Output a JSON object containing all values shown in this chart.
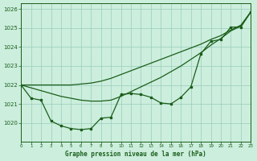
{
  "title": "Graphe pression niveau de la mer (hPa)",
  "background_color": "#cceedd",
  "grid_color": "#99ccbb",
  "line_color": "#1a5e1a",
  "xlim": [
    0,
    23
  ],
  "ylim": [
    1019.0,
    1026.3
  ],
  "yticks": [
    1020,
    1021,
    1022,
    1023,
    1024,
    1025,
    1026
  ],
  "xticks": [
    0,
    1,
    2,
    3,
    4,
    5,
    6,
    7,
    8,
    9,
    10,
    11,
    12,
    13,
    14,
    15,
    16,
    17,
    18,
    19,
    20,
    21,
    22,
    23
  ],
  "x": [
    0,
    1,
    2,
    3,
    4,
    5,
    6,
    7,
    8,
    9,
    10,
    11,
    12,
    13,
    14,
    15,
    16,
    17,
    18,
    19,
    20,
    21,
    22,
    23
  ],
  "y_actual": [
    1022.0,
    1021.3,
    1021.2,
    1020.1,
    1019.85,
    1019.7,
    1019.65,
    1019.7,
    1020.25,
    1020.3,
    1021.5,
    1021.55,
    1021.5,
    1021.35,
    1021.05,
    1021.0,
    1021.35,
    1021.9,
    1023.65,
    1024.3,
    1024.4,
    1025.05,
    1025.05,
    1025.85
  ],
  "y_trend1": [
    1022.0,
    1021.85,
    1021.7,
    1021.55,
    1021.4,
    1021.3,
    1021.2,
    1021.15,
    1021.15,
    1021.2,
    1021.4,
    1021.65,
    1021.9,
    1022.15,
    1022.4,
    1022.7,
    1023.0,
    1023.35,
    1023.7,
    1024.1,
    1024.45,
    1024.85,
    1025.1,
    1025.85
  ],
  "y_trend2": [
    1022.0,
    1022.0,
    1022.0,
    1022.0,
    1022.0,
    1022.0,
    1022.05,
    1022.1,
    1022.2,
    1022.35,
    1022.55,
    1022.75,
    1022.95,
    1023.15,
    1023.35,
    1023.55,
    1023.75,
    1023.95,
    1024.15,
    1024.4,
    1024.6,
    1024.9,
    1025.15,
    1025.85
  ]
}
